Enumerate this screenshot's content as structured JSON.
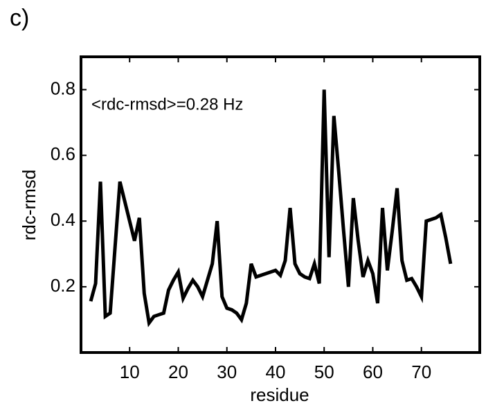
{
  "panel_label": "c)",
  "chart_data": {
    "type": "line",
    "xlabel": "residue",
    "ylabel": "rdc-rmsd",
    "annotation": "<rdc-rmsd>=0.28 Hz",
    "color": "#000000",
    "x": [
      2,
      3,
      4,
      5,
      6,
      7,
      8,
      9,
      10,
      11,
      12,
      13,
      14,
      15,
      16,
      17,
      18,
      19,
      20,
      21,
      22,
      23,
      24,
      25,
      26,
      27,
      28,
      29,
      30,
      31,
      32,
      33,
      34,
      35,
      36,
      37,
      38,
      39,
      40,
      41,
      42,
      43,
      44,
      45,
      46,
      47,
      48,
      49,
      50,
      51,
      52,
      53,
      54,
      55,
      56,
      57,
      58,
      59,
      60,
      61,
      62,
      63,
      64,
      65,
      66,
      67,
      68,
      69,
      70,
      71,
      72,
      73,
      74,
      75,
      76
    ],
    "values": [
      0.156,
      0.21,
      0.52,
      0.11,
      0.12,
      0.32,
      0.52,
      0.46,
      0.4,
      0.34,
      0.41,
      0.18,
      0.09,
      0.11,
      0.115,
      0.12,
      0.19,
      0.22,
      0.245,
      0.165,
      0.195,
      0.22,
      0.2,
      0.17,
      0.22,
      0.27,
      0.4,
      0.17,
      0.135,
      0.13,
      0.12,
      0.1,
      0.15,
      0.27,
      0.23,
      0.235,
      0.24,
      0.245,
      0.25,
      0.235,
      0.28,
      0.44,
      0.27,
      0.24,
      0.23,
      0.225,
      0.27,
      0.21,
      0.8,
      0.29,
      0.72,
      0.55,
      0.37,
      0.2,
      0.47,
      0.34,
      0.23,
      0.28,
      0.24,
      0.15,
      0.44,
      0.25,
      0.37,
      0.5,
      0.28,
      0.22,
      0.225,
      0.2,
      0.17,
      0.4,
      0.405,
      0.41,
      0.42,
      0.35,
      0.27
    ],
    "xlim": [
      0,
      82
    ],
    "xticks": [
      10,
      20,
      30,
      40,
      50,
      60,
      70
    ],
    "ylim": [
      0,
      0.9
    ],
    "yticks": [
      0.2,
      0.4,
      0.6,
      0.8
    ]
  }
}
